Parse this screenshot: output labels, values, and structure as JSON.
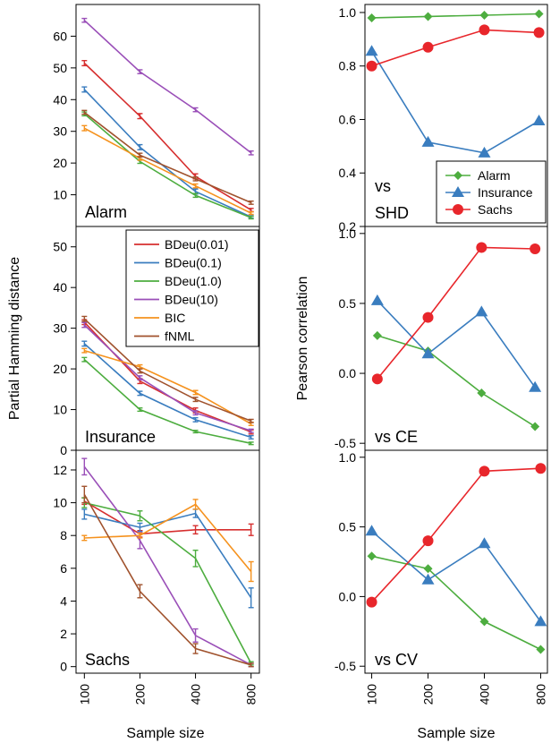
{
  "figure": {
    "left_ylabel": "Partial Hamming distance",
    "right_ylabel": "Pearson correlation",
    "left_xlabel": "Sample size",
    "right_xlabel": "Sample size"
  },
  "colors": {
    "BDeu(0.01)": "#d62f2f",
    "BDeu(0.1)": "#3a7dbf",
    "BDeu(1.0)": "#4dad3f",
    "BDeu(10)": "#9a4fb8",
    "BIC": "#f5921e",
    "fNML": "#a0522d",
    "Alarm": "#4dad3f",
    "Insurance": "#3a7dbf",
    "Sachs": "#e8262b"
  },
  "left_legend": [
    "BDeu(0.01)",
    "BDeu(0.1)",
    "BDeu(1.0)",
    "BDeu(10)",
    "BIC",
    "fNML"
  ],
  "right_legend": [
    "Alarm",
    "Insurance",
    "Sachs"
  ],
  "chart_data": [
    {
      "type": "line",
      "label": "Alarm",
      "x_ticks": [
        "100",
        "200",
        "400",
        "800"
      ],
      "ylim": [
        0,
        70
      ],
      "y_ticks": [
        10,
        20,
        30,
        40,
        50,
        60
      ],
      "series": [
        {
          "name": "BDeu(0.01)",
          "values": [
            51.5,
            34.8,
            15.8,
            5.2
          ],
          "err": [
            0.8,
            0.8,
            0.8,
            0.5
          ]
        },
        {
          "name": "BDeu(0.1)",
          "values": [
            43.2,
            25.0,
            11.0,
            3.0
          ],
          "err": [
            0.8,
            0.8,
            0.8,
            0.4
          ]
        },
        {
          "name": "BDeu(1.0)",
          "values": [
            35.5,
            20.5,
            9.8,
            2.8
          ],
          "err": [
            0.6,
            0.6,
            0.6,
            0.4
          ]
        },
        {
          "name": "BDeu(10)",
          "values": [
            65.0,
            48.8,
            36.8,
            23.2
          ],
          "err": [
            0.6,
            0.6,
            0.6,
            0.6
          ]
        },
        {
          "name": "BIC",
          "values": [
            31.0,
            21.5,
            12.8,
            4.2
          ],
          "err": [
            0.8,
            0.6,
            0.6,
            0.4
          ]
        },
        {
          "name": "fNML",
          "values": [
            36.0,
            22.5,
            15.0,
            7.5
          ],
          "err": [
            0.6,
            0.6,
            0.6,
            0.5
          ]
        }
      ]
    },
    {
      "type": "line",
      "label": "Insurance",
      "x_ticks": [
        "100",
        "200",
        "400",
        "800"
      ],
      "ylim": [
        0,
        55
      ],
      "y_ticks": [
        0,
        10,
        20,
        30,
        40,
        50
      ],
      "series": [
        {
          "name": "BDeu(0.01)",
          "values": [
            31.5,
            17.0,
            9.8,
            4.5
          ],
          "err": [
            0.6,
            0.6,
            0.6,
            0.5
          ]
        },
        {
          "name": "BDeu(0.1)",
          "values": [
            26.2,
            14.0,
            7.5,
            3.2
          ],
          "err": [
            0.6,
            0.5,
            0.5,
            0.4
          ]
        },
        {
          "name": "BDeu(1.0)",
          "values": [
            22.3,
            10.0,
            4.6,
            1.7
          ],
          "err": [
            0.5,
            0.4,
            0.3,
            0.3
          ]
        },
        {
          "name": "BDeu(10)",
          "values": [
            30.8,
            17.8,
            9.2,
            4.8
          ],
          "err": [
            0.6,
            0.5,
            0.5,
            0.4
          ]
        },
        {
          "name": "BIC",
          "values": [
            24.5,
            20.5,
            14.2,
            6.5
          ],
          "err": [
            0.5,
            0.5,
            0.5,
            0.4
          ]
        },
        {
          "name": "fNML",
          "values": [
            32.3,
            19.5,
            12.5,
            7.2
          ],
          "err": [
            0.6,
            0.5,
            0.5,
            0.4
          ]
        }
      ]
    },
    {
      "type": "line",
      "label": "Sachs",
      "x_ticks": [
        "100",
        "200",
        "400",
        "800"
      ],
      "ylim": [
        -0.4,
        13.2
      ],
      "y_ticks": [
        0,
        2,
        4,
        6,
        8,
        10,
        12
      ],
      "series": [
        {
          "name": "BDeu(0.01)",
          "values": [
            10.1,
            8.1,
            8.35,
            8.35
          ],
          "err": [
            0.2,
            0.2,
            0.25,
            0.35
          ]
        },
        {
          "name": "BDeu(0.1)",
          "values": [
            9.3,
            8.5,
            9.35,
            4.2
          ],
          "err": [
            0.3,
            0.25,
            0.25,
            0.6
          ]
        },
        {
          "name": "BDeu(1.0)",
          "values": [
            10.0,
            9.2,
            6.6,
            0.2
          ],
          "err": [
            0.3,
            0.3,
            0.5,
            0.1
          ]
        },
        {
          "name": "BDeu(10)",
          "values": [
            12.2,
            7.7,
            1.9,
            0.1
          ],
          "err": [
            0.5,
            0.5,
            0.4,
            0.1
          ]
        },
        {
          "name": "BIC",
          "values": [
            7.85,
            8.0,
            9.9,
            5.8
          ],
          "err": [
            0.15,
            0.15,
            0.3,
            0.6
          ]
        },
        {
          "name": "fNML",
          "values": [
            10.5,
            4.6,
            1.1,
            0.1
          ],
          "err": [
            0.5,
            0.4,
            0.3,
            0.1
          ]
        }
      ]
    },
    {
      "type": "line",
      "label": "vs\nSHD",
      "x_ticks": [
        "100",
        "200",
        "400",
        "800"
      ],
      "ylim": [
        0.2,
        1.03
      ],
      "y_ticks": [
        0.2,
        0.4,
        0.6,
        0.8,
        1.0
      ],
      "series": [
        {
          "name": "Alarm",
          "x": [
            1.0,
            2.0,
            3.0,
            3.97
          ],
          "values": [
            0.98,
            0.985,
            0.99,
            0.995
          ]
        },
        {
          "name": "Insurance",
          "x": [
            1.0,
            2.0,
            3.0,
            3.97
          ],
          "values": [
            0.855,
            0.515,
            0.475,
            0.595
          ]
        },
        {
          "name": "Sachs",
          "x": [
            1.0,
            2.0,
            3.0,
            3.97
          ],
          "values": [
            0.8,
            0.87,
            0.935,
            0.925
          ]
        }
      ]
    },
    {
      "type": "line",
      "label": "vs CE",
      "x_ticks": [
        "100",
        "200",
        "400",
        "800"
      ],
      "ylim": [
        -0.55,
        1.05
      ],
      "y_ticks": [
        -0.5,
        0.0,
        0.5,
        1.0
      ],
      "series": [
        {
          "name": "Alarm",
          "x": [
            1.1,
            2.0,
            2.95,
            3.9
          ],
          "values": [
            0.27,
            0.16,
            -0.14,
            -0.38
          ]
        },
        {
          "name": "Insurance",
          "x": [
            1.1,
            2.0,
            2.95,
            3.9
          ],
          "values": [
            0.52,
            0.14,
            0.44,
            -0.1
          ]
        },
        {
          "name": "Sachs",
          "x": [
            1.1,
            2.0,
            2.95,
            3.9
          ],
          "values": [
            -0.04,
            0.4,
            0.9,
            0.89
          ]
        }
      ]
    },
    {
      "type": "line",
      "label": "vs CV",
      "x_ticks": [
        "100",
        "200",
        "400",
        "800"
      ],
      "ylim": [
        -0.55,
        1.05
      ],
      "y_ticks": [
        -0.5,
        0.0,
        0.5,
        1.0
      ],
      "series": [
        {
          "name": "Alarm",
          "x": [
            1.0,
            2.0,
            3.0,
            4.0
          ],
          "values": [
            0.29,
            0.2,
            -0.18,
            -0.38
          ]
        },
        {
          "name": "Insurance",
          "x": [
            1.0,
            2.0,
            3.0,
            4.0
          ],
          "values": [
            0.47,
            0.12,
            0.38,
            -0.18
          ]
        },
        {
          "name": "Sachs",
          "x": [
            1.0,
            2.0,
            3.0,
            4.0
          ],
          "values": [
            -0.04,
            0.4,
            0.9,
            0.92
          ]
        }
      ]
    }
  ]
}
